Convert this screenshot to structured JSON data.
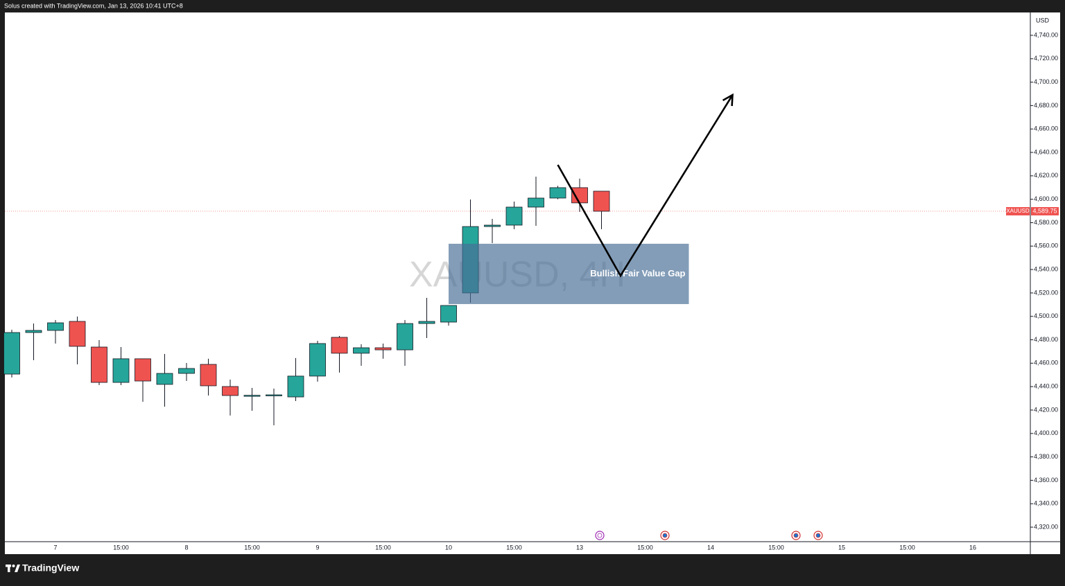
{
  "header": {
    "text": "Solus created with TradingView.com, Jan 13, 2026 10:41 UTC+8"
  },
  "footer": {
    "brand": "TradingView"
  },
  "chart_data": {
    "type": "candlestick",
    "watermark": "XAUUSD, 4H",
    "currency": "USD",
    "up_color": "#26a69a",
    "down_color": "#ef5350",
    "categories": [
      null,
      null,
      "7",
      null,
      null,
      "15:00",
      null,
      null,
      "8",
      null,
      null,
      "15:00",
      null,
      null,
      "9",
      null,
      null,
      "15:00",
      null,
      null,
      "10",
      null,
      null,
      "15:00",
      null,
      null,
      "13",
      null,
      null,
      "15:00",
      null,
      null,
      "14",
      null,
      null,
      "15:00",
      null,
      null,
      "15",
      null,
      null,
      "15:00",
      null,
      null,
      "16",
      null,
      null
    ],
    "open": [
      4450.7,
      4486.2,
      4488.0,
      4495.7,
      4473.8,
      4443.6,
      4463.8,
      4441.9,
      4451.3,
      4459.0,
      4440.1,
      4432.4,
      4432.6,
      4431.2,
      4449.0,
      4482.1,
      4468.5,
      4473.2,
      4471.4,
      4493.9,
      4495.1,
      4520.0,
      4576.7,
      4577.9,
      4593.3,
      4601.0,
      4609.9,
      4606.9,
      null,
      null,
      null,
      null,
      null,
      null,
      null,
      null,
      null,
      null,
      null,
      null,
      null,
      null,
      null,
      null,
      null,
      null,
      null
    ],
    "high": [
      4488.6,
      4493.9,
      4496.9,
      4499.8,
      4479.7,
      4473.8,
      4463.8,
      4467.9,
      4460.2,
      4463.8,
      4446.0,
      4438.9,
      4438.3,
      4464.4,
      4479.1,
      4483.3,
      4476.2,
      4476.8,
      4496.9,
      4515.8,
      4509.3,
      4599.8,
      4583.2,
      4598.0,
      4619.3,
      4611.5,
      4617.6,
      4606.9,
      null,
      null,
      null,
      null,
      null,
      null,
      null,
      null,
      null,
      null,
      null,
      null,
      null,
      null,
      null,
      null,
      null,
      null,
      null
    ],
    "low": [
      4447.8,
      4462.6,
      4476.8,
      4459.0,
      4441.3,
      4441.3,
      4427.1,
      4422.9,
      4444.8,
      4432.4,
      4415.3,
      4419.4,
      4407.0,
      4427.7,
      4444.2,
      4452.0,
      4457.8,
      4463.8,
      4457.8,
      4481.5,
      4492.1,
      4511.7,
      4562.5,
      4574.4,
      4577.3,
      4600.0,
      4589.2,
      4574.4,
      null,
      null,
      null,
      null,
      null,
      null,
      null,
      null,
      null,
      null,
      null,
      null,
      null,
      null,
      null,
      null,
      null,
      null,
      null
    ],
    "close": [
      4486.2,
      4488.0,
      4494.5,
      4474.4,
      4443.6,
      4463.8,
      4444.8,
      4451.3,
      4455.5,
      4440.7,
      4432.4,
      4432.6,
      4433.0,
      4449.0,
      4476.8,
      4468.5,
      4473.2,
      4471.4,
      4493.9,
      4495.7,
      4509.3,
      4576.7,
      4577.9,
      4593.3,
      4601.0,
      4609.9,
      4596.9,
      4589.75,
      null,
      null,
      null,
      null,
      null,
      null,
      null,
      null,
      null,
      null,
      null,
      null,
      null,
      null,
      null,
      null,
      null,
      null,
      null
    ],
    "ylim": [
      4307.6,
      4759.5
    ],
    "yticks": [
      {
        "value": 4320,
        "label": "4,320.00"
      },
      {
        "value": 4340,
        "label": "4,340.00"
      },
      {
        "value": 4360,
        "label": "4,360.00"
      },
      {
        "value": 4380,
        "label": "4,380.00"
      },
      {
        "value": 4400,
        "label": "4,400.00"
      },
      {
        "value": 4420,
        "label": "4,420.00"
      },
      {
        "value": 4440,
        "label": "4,440.00"
      },
      {
        "value": 4460,
        "label": "4,460.00"
      },
      {
        "value": 4480,
        "label": "4,480.00"
      },
      {
        "value": 4500,
        "label": "4,500.00"
      },
      {
        "value": 4520,
        "label": "4,520.00"
      },
      {
        "value": 4540,
        "label": "4,540.00"
      },
      {
        "value": 4560,
        "label": "4,560.00"
      },
      {
        "value": 4580,
        "label": "4,580.00"
      },
      {
        "value": 4600,
        "label": "4,600.00"
      },
      {
        "value": 4620,
        "label": "4,620.00"
      },
      {
        "value": 4640,
        "label": "4,640.00"
      },
      {
        "value": 4660,
        "label": "4,660.00"
      },
      {
        "value": 4680,
        "label": "4,680.00"
      },
      {
        "value": 4700,
        "label": "4,700.00"
      },
      {
        "value": 4720,
        "label": "4,720.00"
      },
      {
        "value": 4740,
        "label": "4,740.00"
      }
    ],
    "price_label": {
      "name": "XAUUSD",
      "value": 4589.75,
      "label": "4,589.75",
      "color": "#ef5350"
    },
    "zone": {
      "label": "Bullish Fair Value Gap",
      "top": 4562.0,
      "bottom": 4510.5,
      "x_start": 20,
      "x_end": 31
    },
    "projection": {
      "x": [
        25,
        27.87,
        33
      ],
      "y": [
        4629.4,
        4534.7,
        4689.1
      ]
    }
  }
}
